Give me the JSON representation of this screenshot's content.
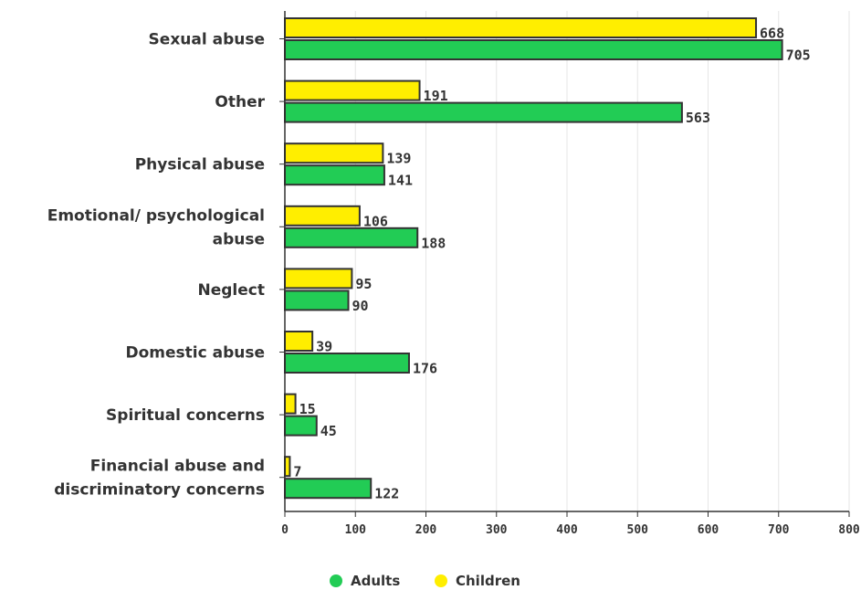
{
  "chart_data": {
    "type": "bar",
    "orientation": "horizontal",
    "categories": [
      [
        "Sexual abuse"
      ],
      [
        "Other"
      ],
      [
        "Physical abuse"
      ],
      [
        "Emotional/ psychological",
        "abuse"
      ],
      [
        "Neglect"
      ],
      [
        "Domestic abuse"
      ],
      [
        "Spiritual concerns"
      ],
      [
        "Financial abuse and",
        "discriminatory concerns"
      ]
    ],
    "series": [
      {
        "name": "Children",
        "color": "#ffee00",
        "values": [
          668,
          191,
          139,
          106,
          95,
          39,
          15,
          7
        ]
      },
      {
        "name": "Adults",
        "color": "#22cc55",
        "values": [
          705,
          563,
          141,
          188,
          90,
          176,
          45,
          122
        ]
      }
    ],
    "xlim": [
      0,
      800
    ],
    "xticks": [
      0,
      100,
      200,
      300,
      400,
      500,
      600,
      700,
      800
    ],
    "grid": true,
    "legend": {
      "placement": "bottom-center",
      "items": [
        {
          "label": "Adults",
          "color": "#22cc55"
        },
        {
          "label": "Children",
          "color": "#ffee00"
        }
      ]
    }
  }
}
